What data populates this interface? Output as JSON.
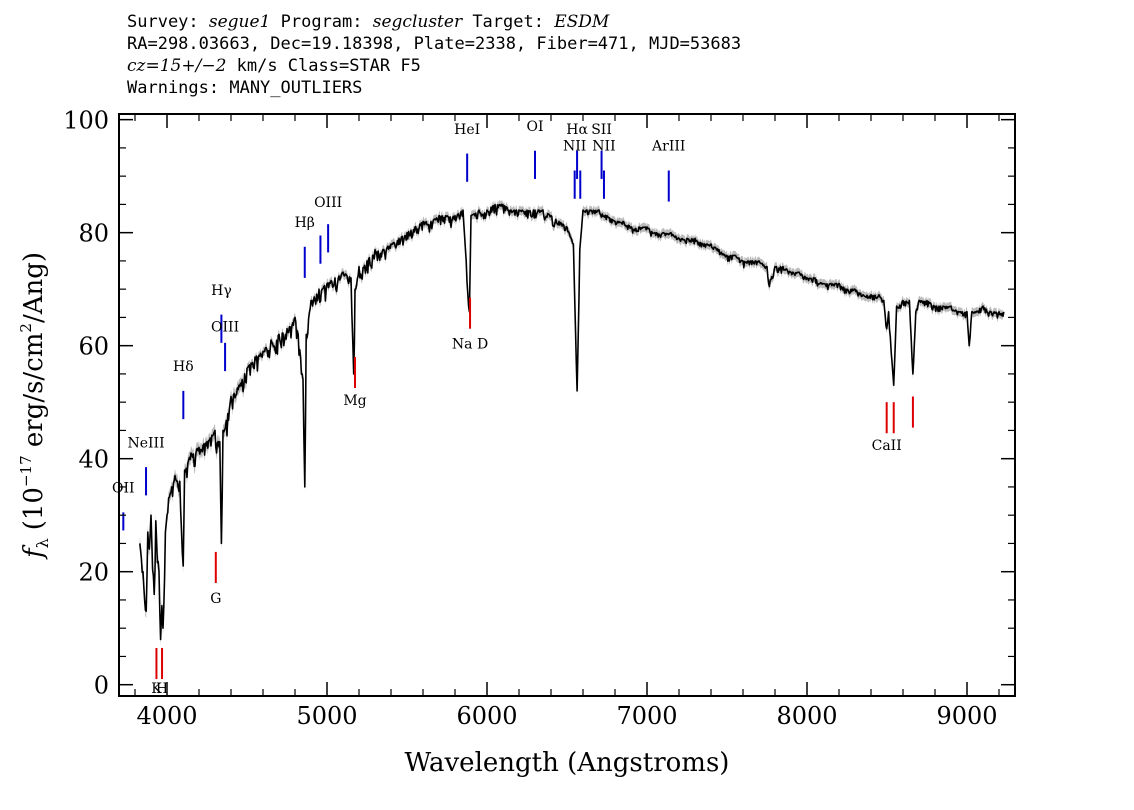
{
  "header": {
    "line1": {
      "survey_label": "Survey: ",
      "survey": "segue1",
      "program_label": " Program: ",
      "program": "segcluster",
      "target_label": " Target: ",
      "target": "ESDM"
    },
    "line2": "RA=298.03663, Dec=19.18398, Plate=2338, Fiber=471, MJD=53683",
    "line3": {
      "cz": "cz=15+/−2",
      "rest": " km/s Class=STAR F5"
    },
    "line4": "Warnings: MANY_OUTLIERS"
  },
  "chart_data": {
    "type": "line",
    "xlabel": "Wavelength (Angstroms)",
    "ylabel": {
      "f": "f",
      "sub": "λ",
      "pre": "(10",
      "exp1": "−17",
      "mid": " erg/s/cm",
      "exp2": "2",
      "post": "/Ang)"
    },
    "xlim": [
      3700,
      9300
    ],
    "ylim": [
      -2,
      101
    ],
    "x_ticks": [
      4000,
      5000,
      6000,
      7000,
      8000,
      9000
    ],
    "x_tick_labels": [
      "4000",
      "5000",
      "6000",
      "7000",
      "8000",
      "9000"
    ],
    "y_ticks": [
      0,
      20,
      40,
      60,
      80,
      100
    ],
    "y_tick_labels": [
      "0",
      "20",
      "40",
      "60",
      "80",
      "100"
    ],
    "grid": false,
    "colors": {
      "spectrum": "#000000",
      "error_band": "#bbbbbb",
      "emission_marker": "#0000cc",
      "absorption_marker": "#dd0000"
    },
    "series": [
      {
        "x": [
          3830,
          3850,
          3870,
          3880,
          3890,
          3900,
          3920,
          3930,
          3950,
          3960,
          3968,
          3975,
          3990,
          4000,
          4010,
          4030,
          4050,
          4080,
          4101,
          4110,
          4150,
          4200,
          4250,
          4300,
          4330,
          4340,
          4350,
          4380,
          4400,
          4450,
          4500,
          4550,
          4600,
          4650,
          4700,
          4750,
          4800,
          4820,
          4850,
          4861,
          4870,
          4900,
          4950,
          5000,
          5050,
          5100,
          5150,
          5167,
          5175,
          5200,
          5250,
          5300,
          5350,
          5400,
          5450,
          5500,
          5550,
          5600,
          5650,
          5700,
          5750,
          5800,
          5850,
          5890,
          5900,
          5950,
          6000,
          6050,
          6100,
          6150,
          6200,
          6250,
          6300,
          6350,
          6400,
          6450,
          6500,
          6540,
          6563,
          6580,
          6600,
          6650,
          6700,
          6750,
          6800,
          6850,
          6900,
          6950,
          7000,
          7050,
          7100,
          7150,
          7200,
          7250,
          7300,
          7350,
          7400,
          7450,
          7500,
          7550,
          7600,
          7650,
          7700,
          7750,
          7760,
          7800,
          7850,
          7900,
          7950,
          8000,
          8050,
          8100,
          8150,
          8200,
          8250,
          8300,
          8350,
          8400,
          8450,
          8480,
          8498,
          8510,
          8542,
          8560,
          8600,
          8640,
          8662,
          8680,
          8700,
          8750,
          8800,
          8850,
          8900,
          8950,
          9000,
          9014,
          9030,
          9050,
          9100,
          9150,
          9200,
          9230
        ],
        "y": [
          25,
          20,
          13,
          27,
          24,
          30,
          16,
          29,
          20,
          8,
          14,
          10,
          27,
          30,
          33,
          35,
          37,
          36,
          21,
          38,
          41,
          42,
          43,
          45,
          43,
          25,
          45,
          48,
          51,
          53,
          56,
          58,
          59,
          61,
          62,
          63,
          65,
          62,
          54,
          35,
          62,
          68,
          70,
          71,
          72,
          73,
          72,
          55,
          70,
          74,
          75,
          77,
          77,
          78,
          79,
          80,
          81,
          82,
          82,
          83,
          83,
          83,
          84,
          66,
          83,
          84,
          84,
          85,
          85,
          84,
          84,
          84,
          84,
          84,
          83,
          82,
          81,
          78,
          52,
          77,
          84,
          84,
          84,
          83,
          82,
          82,
          81,
          81,
          81,
          80,
          80,
          80,
          79,
          79,
          79,
          78,
          78,
          77,
          76,
          76,
          75,
          75,
          75,
          74,
          71,
          74,
          74,
          73,
          73,
          72,
          72,
          71,
          71,
          71,
          70,
          70,
          69,
          69,
          69,
          68,
          63,
          66,
          53,
          67,
          68,
          68,
          55,
          66,
          68,
          68,
          67,
          67,
          67,
          66,
          66,
          60,
          66,
          66,
          67,
          66,
          66,
          66
        ]
      }
    ],
    "emission_lines": [
      {
        "label": "OII",
        "x": 3727,
        "y_bottom": 27.3,
        "y_top": 30.5,
        "label_y": 34
      },
      {
        "label": "NeIII",
        "x": 3869,
        "y_bottom": 33.5,
        "y_top": 38.5,
        "label_y": 42
      },
      {
        "label": "Hδ",
        "x": 4102,
        "y_bottom": 47,
        "y_top": 52,
        "label_y": 55.5
      },
      {
        "label": "Hγ",
        "x": 4340,
        "y_bottom": 60.5,
        "y_top": 65.5,
        "label_y": 69
      },
      {
        "label": "OIII",
        "x": 4363,
        "y_bottom": 55.5,
        "y_top": 60.5,
        "label_y": 62.5
      },
      {
        "label": "Hβ",
        "x": 4861,
        "y_bottom": 72,
        "y_top": 77.5,
        "label_y": 81
      },
      {
        "label": "",
        "x": 4959,
        "y_bottom": 74.5,
        "y_top": 79.5,
        "label_y": 0
      },
      {
        "label": "OIII",
        "x": 5007,
        "y_bottom": 76.5,
        "y_top": 81.5,
        "label_y": 84.5
      },
      {
        "label": "HeI",
        "x": 5876,
        "y_bottom": 89,
        "y_top": 94,
        "label_y": 97.5
      },
      {
        "label": "OI",
        "x": 6300,
        "y_bottom": 89.5,
        "y_top": 94.5,
        "label_y": 98
      },
      {
        "label": "NII",
        "x": 6548,
        "y_bottom": 86,
        "y_top": 91,
        "label_y": 94.5
      },
      {
        "label": "Hα",
        "x": 6563,
        "y_bottom": 89.5,
        "y_top": 94.5,
        "label_y": 97.5
      },
      {
        "label": "",
        "x": 6583,
        "y_bottom": 86,
        "y_top": 91,
        "label_y": 0
      },
      {
        "label": "SII",
        "x": 6716,
        "y_bottom": 89.5,
        "y_top": 94.5,
        "label_y": 97.5
      },
      {
        "label": "NII",
        "x": 6731,
        "y_bottom": 86,
        "y_top": 91,
        "label_y": 94.5
      },
      {
        "label": "ArIII",
        "x": 7136,
        "y_bottom": 85.5,
        "y_top": 91,
        "label_y": 94.5
      }
    ],
    "absorption_lines": [
      {
        "label": "K",
        "x": 3934,
        "y_bottom": 1,
        "y_top": 6.5,
        "label_y": -1.5
      },
      {
        "label": "H",
        "x": 3969,
        "y_bottom": 1,
        "y_top": 6.5,
        "label_y": -1.5
      },
      {
        "label": "G",
        "x": 4305,
        "y_bottom": 18,
        "y_top": 23.5,
        "label_y": 14.5
      },
      {
        "label": "Mg",
        "x": 5175,
        "y_bottom": 52.5,
        "y_top": 58,
        "label_y": 49.5
      },
      {
        "label": "Na D",
        "x": 5894,
        "y_bottom": 63,
        "y_top": 68.5,
        "label_y": 59.5
      },
      {
        "label": "CaII",
        "x": 8498,
        "y_bottom": 44.5,
        "y_top": 50,
        "label_y": 41.5
      },
      {
        "label": "",
        "x": 8542,
        "y_bottom": 44.5,
        "y_top": 50,
        "label_y": 0
      },
      {
        "label": "",
        "x": 8662,
        "y_bottom": 45.5,
        "y_top": 51,
        "label_y": 0
      }
    ]
  }
}
